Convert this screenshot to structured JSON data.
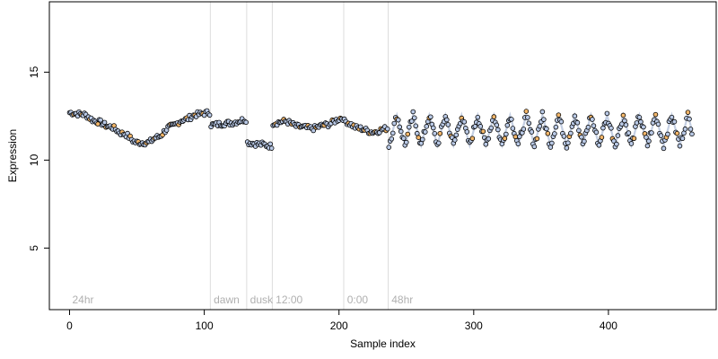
{
  "chart_data": {
    "type": "scatter",
    "title": "",
    "xlabel": "Sample index",
    "ylabel": "Expression",
    "xlim": [
      -15,
      480
    ],
    "ylim": [
      1.5,
      19
    ],
    "x_ticks": [
      0,
      100,
      200,
      300,
      400
    ],
    "y_ticks": [
      5,
      10,
      15
    ],
    "grid": false,
    "legend": "none",
    "colors": {
      "point_fill_default": "#b9c9e6",
      "point_fill_highlight": "#f2b66a",
      "point_stroke": "#000000",
      "fit_line": "#c4cfe3",
      "fit_line_highlight": "#f2c490",
      "phase_divider": "#dddddd"
    },
    "phases": [
      {
        "label": "24hr",
        "start": 0
      },
      {
        "label": "dawn",
        "start": 105
      },
      {
        "label": "dusk",
        "start": 132
      },
      {
        "label": "12:00",
        "start": 151
      },
      {
        "label": "0:00",
        "start": 204
      },
      {
        "label": "48hr",
        "start": 237
      }
    ],
    "segments": [
      {
        "start": 0,
        "end": 104,
        "shape": "smooth",
        "anchors": [
          [
            0,
            12.7
          ],
          [
            10,
            12.6
          ],
          [
            20,
            12.2
          ],
          [
            30,
            11.9
          ],
          [
            40,
            11.5
          ],
          [
            50,
            11.0
          ],
          [
            58,
            11.0
          ],
          [
            65,
            11.3
          ],
          [
            75,
            11.9
          ],
          [
            85,
            12.3
          ],
          [
            95,
            12.6
          ],
          [
            104,
            12.7
          ]
        ],
        "highlight_every": 3
      },
      {
        "start": 105,
        "end": 131,
        "shape": "smooth",
        "anchors": [
          [
            105,
            12.0
          ],
          [
            118,
            12.1
          ],
          [
            131,
            12.3
          ]
        ],
        "highlight_every": 0
      },
      {
        "start": 132,
        "end": 150,
        "shape": "smooth",
        "anchors": [
          [
            132,
            11.0
          ],
          [
            142,
            10.9
          ],
          [
            150,
            10.8
          ]
        ],
        "highlight_every": 0
      },
      {
        "start": 151,
        "end": 203,
        "shape": "smooth",
        "anchors": [
          [
            151,
            12.1
          ],
          [
            160,
            12.2
          ],
          [
            170,
            11.9
          ],
          [
            180,
            11.8
          ],
          [
            190,
            12.0
          ],
          [
            203,
            12.4
          ]
        ],
        "highlight_every": 3
      },
      {
        "start": 204,
        "end": 236,
        "shape": "smooth",
        "anchors": [
          [
            204,
            12.2
          ],
          [
            215,
            11.8
          ],
          [
            225,
            11.6
          ],
          [
            236,
            11.8
          ]
        ],
        "highlight_every": 2
      },
      {
        "start": 237,
        "end": 462,
        "shape": "zigzag",
        "center": 11.7,
        "amplitude": 0.85,
        "period": 12,
        "highlight_every": 4
      }
    ]
  }
}
